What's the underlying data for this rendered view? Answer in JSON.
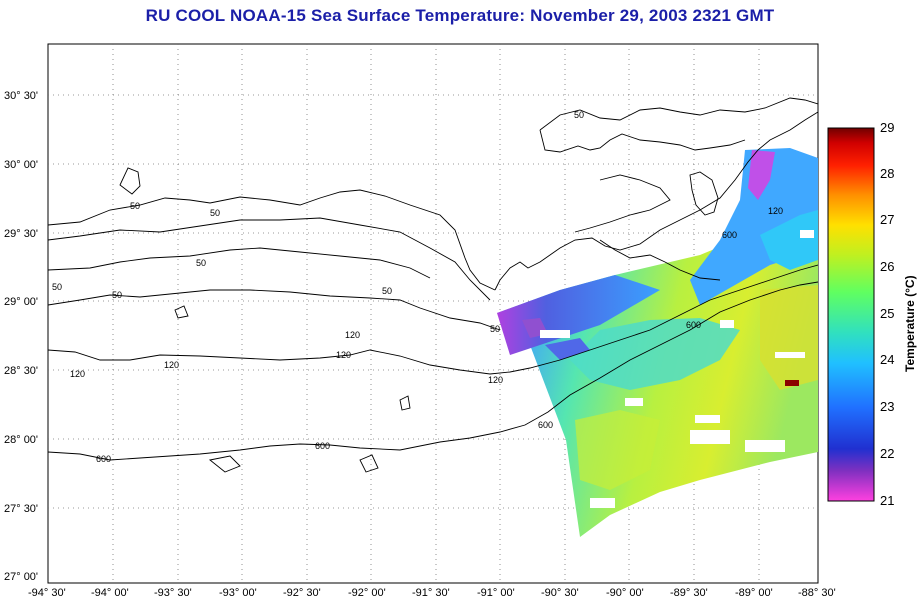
{
  "title": "RU COOL  NOAA-15  Sea Surface Temperature:  November 29, 2003 2321 GMT",
  "map": {
    "lon_ticks": [
      "-94° 30'",
      "-94° 00'",
      "-93° 30'",
      "-93° 00'",
      "-92° 30'",
      "-92° 00'",
      "-91° 30'",
      "-91° 00'",
      "-90° 30'",
      "-90° 00'",
      "-89° 30'",
      "-89° 00'",
      "-88° 30'"
    ],
    "lat_ticks": [
      "30° 30'",
      "30° 00'",
      "29° 30'",
      "29° 00'",
      "28° 30'",
      "28° 00'",
      "27° 30'",
      "27° 00'"
    ],
    "contour_labels": [
      "50",
      "50",
      "50",
      "50",
      "50",
      "50",
      "50",
      "50",
      "120",
      "120",
      "120",
      "120",
      "120",
      "120",
      "600",
      "600",
      "600",
      "600",
      "600"
    ]
  },
  "colorbar": {
    "title": "Temperature (°C)",
    "ticks": [
      "29",
      "28",
      "27",
      "26",
      "25",
      "24",
      "23",
      "22",
      "21"
    ],
    "colors": [
      "#ff40e0",
      "#8030c0",
      "#2030d0",
      "#2070ff",
      "#20c0ff",
      "#30e0c0",
      "#60ff60",
      "#c0f020",
      "#ffe000",
      "#ff9000",
      "#ff2000",
      "#d00000",
      "#700000"
    ]
  }
}
